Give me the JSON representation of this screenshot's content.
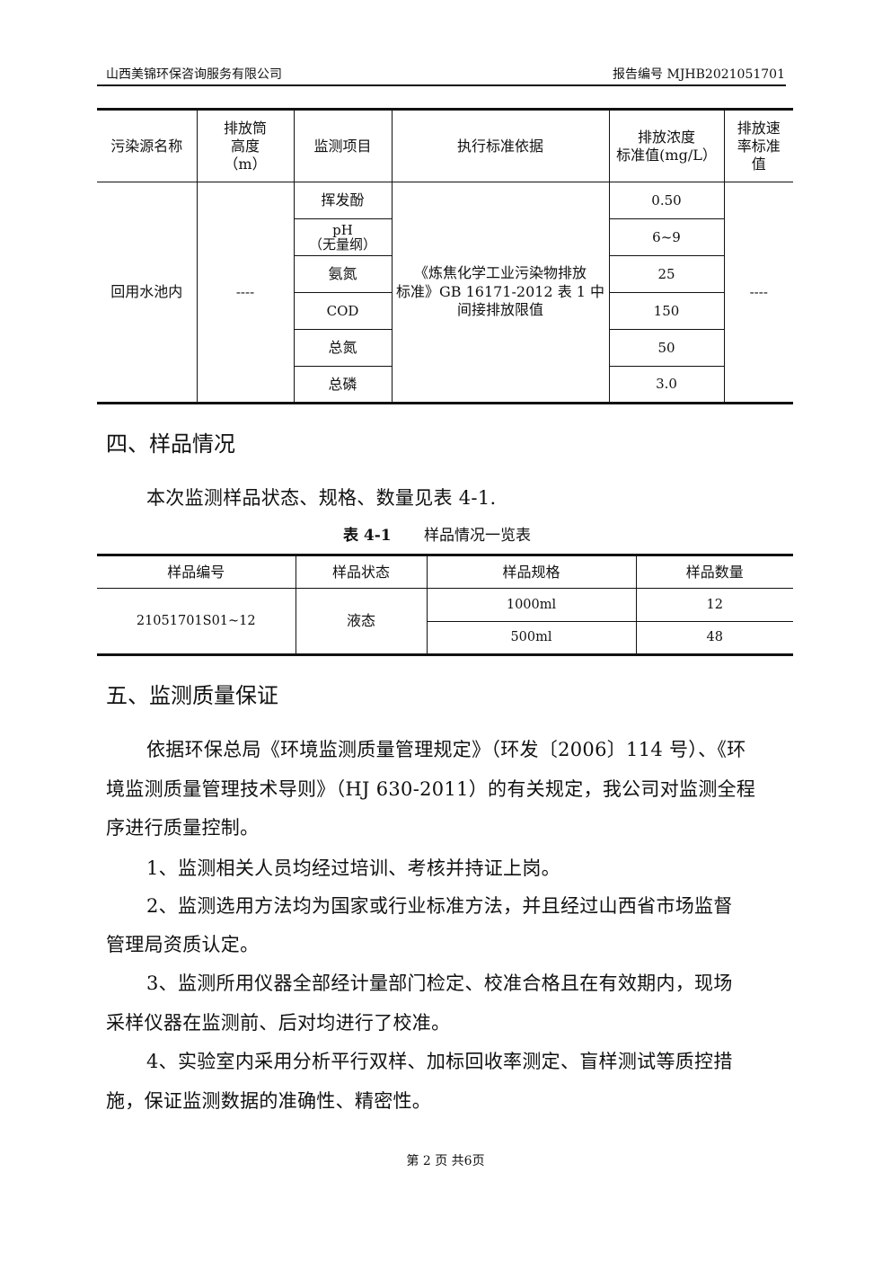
{
  "header": {
    "company": "山西美锦环保咨询服务有限公司",
    "report_no": "报告编号 MJHB2021051701"
  },
  "table1": {
    "headers": [
      "污染源名称",
      "排放筒\n高度\n（m）",
      "监测项目",
      "执行标准依据",
      "排放浓度\n标准值(mg/L）",
      "排放速\n率标准\n值"
    ],
    "source": "回用水池内",
    "height": "----",
    "items": [
      {
        "item": "挥发酚",
        "value": "0.50"
      },
      {
        "item": "pH\n（无量纲）",
        "value": "6~9"
      },
      {
        "item": "氨氮",
        "value": "25"
      },
      {
        "item": "COD",
        "value": "150"
      },
      {
        "item": "总氮",
        "value": "50"
      },
      {
        "item": "总磷",
        "value": "3.0"
      }
    ],
    "standard": "《炼焦化学工业污染物排放\n标准》GB 16171-2012 表 1 中\n间接排放限值",
    "rate": "----"
  },
  "section4": {
    "title": "四、样品情况",
    "intro": "本次监测样品状态、规格、数量见表 4-1.",
    "caption_no": "表 4-1",
    "caption_title": "样品情况一览表"
  },
  "table2": {
    "headers": [
      "样品编号",
      "样品状态",
      "样品规格",
      "样品数量"
    ],
    "sample_id": "21051701S01~12",
    "state": "液态",
    "rows": [
      {
        "spec": "1000ml",
        "qty": "12"
      },
      {
        "spec": "500ml",
        "qty": "48"
      }
    ]
  },
  "section5": {
    "title": "五、监测质量保证",
    "lines": [
      "依据环保总局《环境监测质量管理规定》（环发〔2006〕114 号）、《环",
      "境监测质量管理技术导则》（HJ 630-2011）的有关规定，我公司对监测全程",
      "序进行质量控制。",
      "1、监测相关人员均经过培训、考核并持证上岗。",
      "2、监测选用方法均为国家或行业标准方法，并且经过山西省市场监督",
      "管理局资质认定。",
      "3、监测所用仪器全部经计量部门检定、校准合格且在有效期内，现场",
      "采样仪器在监测前、后对均进行了校准。",
      "4、实验室内采用分析平行双样、加标回收率测定、盲样测试等质控措",
      "施，保证监测数据的准确性、精密性。"
    ]
  },
  "footer": "第 2 页 共6页"
}
